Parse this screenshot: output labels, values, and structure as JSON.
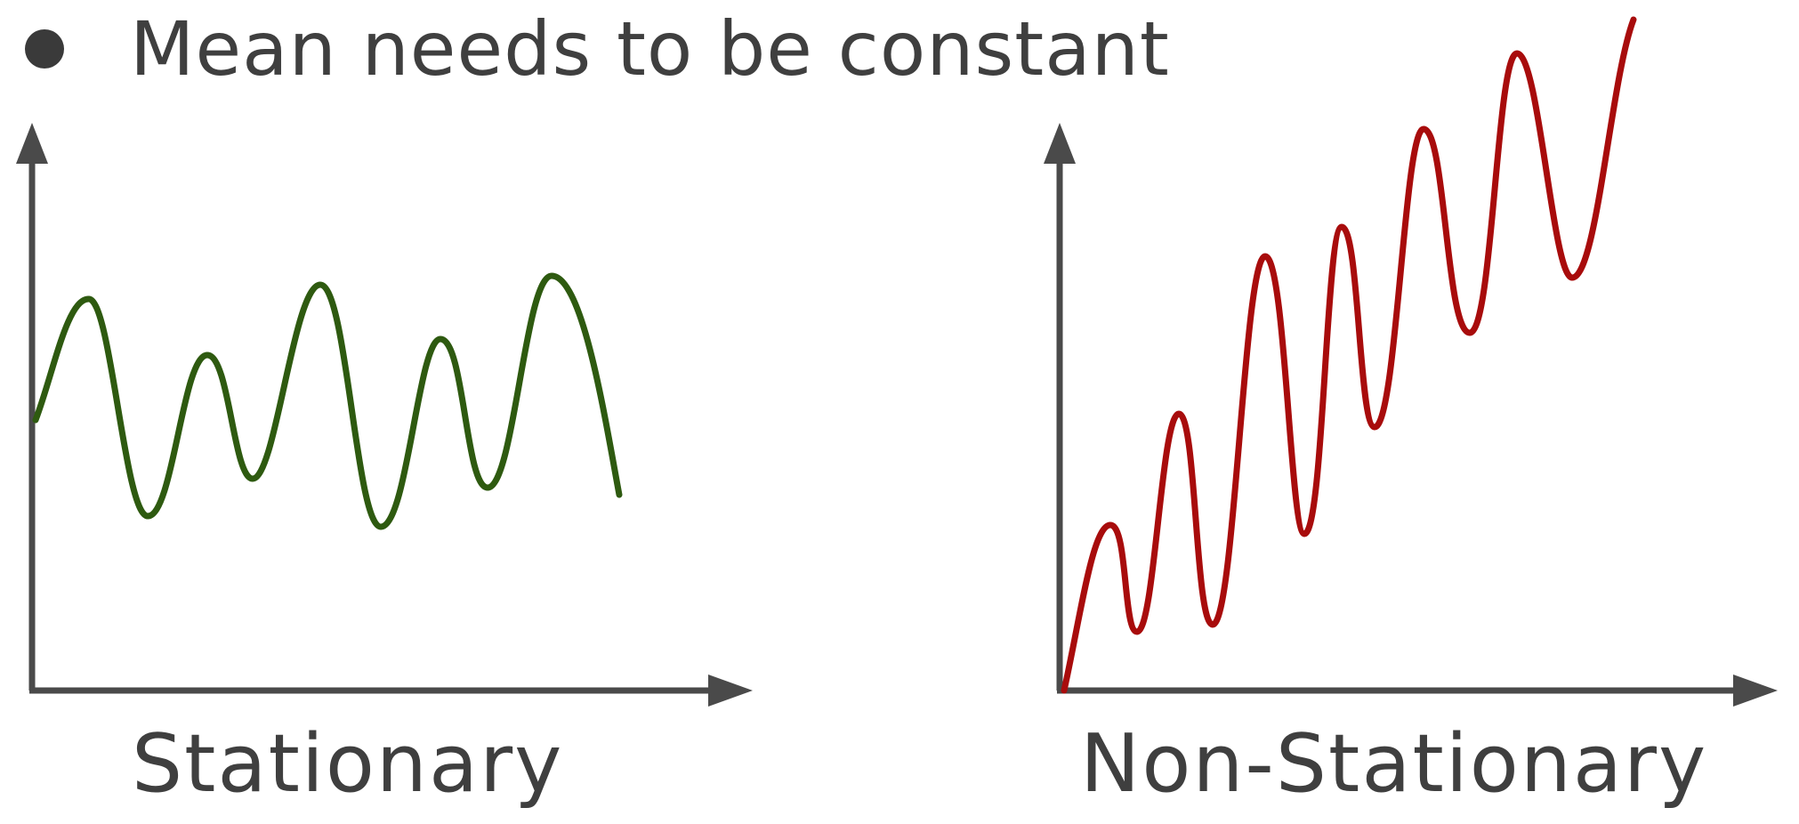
{
  "bullet": {
    "text": "Mean needs to be constant"
  },
  "panels": [
    {
      "caption": "Stationary",
      "line_color": "#2e5a10"
    },
    {
      "caption": "Non-Stationary",
      "line_color": "#a80c0c"
    }
  ],
  "colors": {
    "axis": "#4a4a4a",
    "text": "#3f3f3f"
  }
}
